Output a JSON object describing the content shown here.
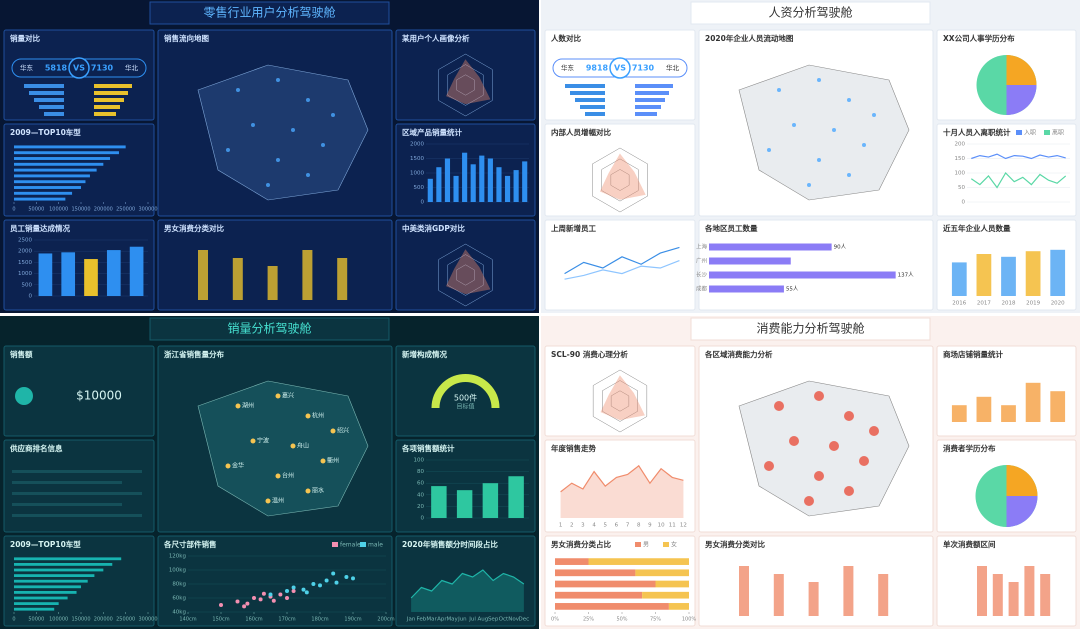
{
  "dashboards": [
    {
      "title": "零售行业用户分析驾驶舱",
      "panels": [
        {
          "title": "销量对比",
          "chart": {
            "type": "kpi",
            "left_label": "华东",
            "left": 5818,
            "vs": "VS",
            "right": 7130,
            "right_label": "华北"
          }
        },
        {
          "title": "销售流向地图",
          "chart": {
            "type": "map"
          }
        },
        {
          "title": "某用户个人画像分析",
          "chart": {
            "type": "radar"
          }
        },
        {
          "title": "2009—TOP10车型",
          "chart": {
            "type": "hbar",
            "categories": [
              null,
              null,
              null,
              null,
              null,
              null,
              null,
              null,
              null,
              null
            ],
            "values": [
              250000,
              235000,
              215000,
              200000,
              185000,
              170000,
              160000,
              150000,
              130000,
              115000
            ],
            "color": "#2e8ff0",
            "xlim": [
              0,
              300000
            ],
            "xticks": [
              0,
              50000,
              100000,
              150000,
              200000,
              250000,
              300000
            ]
          }
        },
        {
          "title": "区域产品销量统计",
          "chart": {
            "type": "bar",
            "categories": [
              null,
              null,
              null,
              null,
              null,
              null,
              null,
              null,
              null,
              null,
              null,
              null
            ],
            "values": [
              800,
              1200,
              1500,
              900,
              1700,
              1300,
              1600,
              1500,
              1200,
              900,
              1100,
              1400
            ],
            "colors": [
              "#2e8ff0",
              "#2e8ff0",
              "#2e8ff0",
              "#2e8ff0",
              "#2e8ff0",
              "#2e8ff0",
              "#2e8ff0",
              "#2e8ff0",
              "#2e8ff0",
              "#2e8ff0",
              "#2e8ff0",
              "#2e8ff0"
            ],
            "ylim": [
              0,
              2000
            ],
            "yticks": [
              0,
              500,
              1000,
              1500,
              2000
            ]
          }
        },
        {
          "title": "员工销量达成情况",
          "chart": {
            "type": "bar",
            "categories": [
              null,
              null,
              null,
              null,
              null
            ],
            "values": [
              1900,
              1950,
              1650,
              2050,
              2200
            ],
            "colors": [
              "#2e8ff0",
              "#2e8ff0",
              "#e8c12c",
              "#2e8ff0",
              "#2e8ff0"
            ],
            "ylim": [
              0,
              2500
            ],
            "yticks": [
              0,
              500,
              1000,
              1500,
              2000,
              2500
            ]
          }
        },
        {
          "title": "男女消费分类对比",
          "chart": {
            "type": "deco"
          }
        },
        {
          "title": "中美类消GDP对比",
          "chart": {
            "type": "radar"
          }
        }
      ]
    },
    {
      "title": "人资分析驾驶舱",
      "panels": [
        {
          "title": "人数对比",
          "chart": {
            "type": "kpi",
            "left_label": "华东",
            "left": 9818,
            "vs": "VS",
            "right": 7130,
            "right_label": "华北"
          }
        },
        {
          "title": "2020年企业人员流动地图",
          "chart": {
            "type": "map"
          }
        },
        {
          "title": "XX公司人事学历分布",
          "chart": {
            "type": "pie"
          }
        },
        {
          "title": "内部人员增幅对比",
          "chart": {
            "type": "radar"
          }
        },
        {
          "title": "十月人员入离职统计",
          "chart": {
            "type": "line",
            "categories": [
              null,
              null,
              null,
              null,
              null,
              null,
              null,
              null,
              null,
              null,
              null,
              null
            ],
            "series": [
              {
                "name": "入职",
                "color": "#5b8ff9",
                "values": [
                  150,
                  160,
                  155,
                  165,
                  150,
                  160,
                  158,
                  150,
                  162,
                  155,
                  160,
                  152
                ]
              },
              {
                "name": "离职",
                "color": "#5ad8a6",
                "values": [
                  80,
                  60,
                  90,
                  50,
                  100,
                  70,
                  85,
                  60,
                  95,
                  75,
                  65,
                  90
                ]
              }
            ],
            "ylim": [
              0,
              200
            ],
            "yticks": [
              0,
              50,
              100,
              150,
              200
            ]
          }
        },
        {
          "title": "上周新增员工",
          "chart": {
            "type": "line",
            "categories": [
              null,
              null,
              null,
              null,
              null,
              null,
              null
            ],
            "series": [
              {
                "color": "#3a8ee6",
                "values": [
                  120,
                  180,
                  150,
                  210,
                  170,
                  230,
                  260
                ]
              },
              {
                "color": "#8ec5ff",
                "values": [
                  90,
                  110,
                  140,
                  120,
                  160,
                  150,
                  190
                ]
              }
            ],
            "ylim": [
              0,
              300
            ]
          }
        },
        {
          "title": "各地区员工数量",
          "chart": {
            "type": "hbar",
            "categories": [
              "上海",
              "广州",
              "长沙",
              "成都"
            ],
            "values": [
              90,
              60,
              137,
              55
            ],
            "value_labels": [
              "90人",
              null,
              "137人",
              "55人"
            ],
            "color": "#8b7cf6",
            "xlim": [
              0,
              160
            ]
          }
        },
        {
          "title": "近五年企业人员数量",
          "chart": {
            "type": "bar",
            "categories": [
              "2016",
              "2017",
              "2018",
              "2019",
              "2020"
            ],
            "values": [
              120,
              150,
              140,
              160,
              165
            ],
            "colors": [
              "#6cb4f5",
              "#f5c451",
              "#6cb4f5",
              "#f5c451",
              "#6cb4f5"
            ],
            "ylim": [
              0,
              200
            ]
          }
        }
      ]
    },
    {
      "title": "销量分析驾驶舱",
      "panels": [
        {
          "title": "销售额",
          "chart": {
            "type": "stat",
            "value": "$10000"
          }
        },
        {
          "title": "浙江省销售量分布",
          "chart": {
            "type": "map",
            "labels": [
              "湖州",
              "嘉兴",
              "杭州",
              "绍兴",
              "宁波",
              "舟山",
              "衢州",
              "金华",
              "台州",
              "丽水",
              "温州"
            ]
          }
        },
        {
          "title": "新增构成情况",
          "chart": {
            "type": "gauge",
            "value": "500件",
            "label": "目标值"
          }
        },
        {
          "title": "供应商排名信息",
          "chart": {
            "type": "list"
          }
        },
        {
          "title": "各项销售额统计",
          "chart": {
            "type": "bar",
            "categories": [
              null,
              null,
              null,
              null
            ],
            "values": [
              55,
              48,
              60,
              72
            ],
            "colors": [
              "#2ec7a0",
              "#2ec7a0",
              "#2ec7a0",
              "#2ec7a0"
            ],
            "ylim": [
              0,
              100
            ],
            "yticks": [
              0,
              20,
              40,
              60,
              80,
              100
            ]
          }
        },
        {
          "title": "2009—TOP10车型",
          "chart": {
            "type": "hbar",
            "categories": [
              null,
              null,
              null,
              null,
              null,
              null,
              null,
              null,
              null,
              null
            ],
            "values": [
              240000,
              220000,
              200000,
              180000,
              165000,
              150000,
              140000,
              120000,
              100000,
              90000
            ],
            "color": "#17b3b0",
            "xlim": [
              0,
              300000
            ],
            "xticks": [
              0,
              50000,
              100000,
              150000,
              200000,
              250000,
              300000
            ]
          }
        },
        {
          "title": "各尺寸部件销售",
          "chart": {
            "type": "scatter",
            "series": [
              {
                "name": "female",
                "color": "#f48fb1",
                "x": [
                  150,
                  155,
                  158,
                  160,
                  162,
                  165,
                  168,
                  170,
                  163,
                  157,
                  172,
                  166
                ],
                "y": [
                  50,
                  55,
                  52,
                  60,
                  58,
                  62,
                  65,
                  60,
                  66,
                  48,
                  70,
                  56
                ]
              },
              {
                "name": "male",
                "color": "#4fd1e8",
                "x": [
                  165,
                  170,
                  172,
                  175,
                  178,
                  180,
                  182,
                  185,
                  188,
                  190,
                  176,
                  184
                ],
                "y": [
                  65,
                  70,
                  75,
                  72,
                  80,
                  78,
                  85,
                  82,
                  90,
                  88,
                  68,
                  95
                ]
              }
            ],
            "xlim": [
              140,
              200
            ],
            "xticks": [
              {
                "value": 140,
                "label": "140cm"
              },
              {
                "value": 150,
                "label": "150cm"
              },
              {
                "value": 160,
                "label": "160cm"
              },
              {
                "value": 170,
                "label": "170cm"
              },
              {
                "value": 180,
                "label": "180cm"
              },
              {
                "value": 190,
                "label": "190cm"
              },
              {
                "value": 200,
                "label": "200cm"
              }
            ],
            "ylim": [
              40,
              120
            ],
            "yticks": [
              {
                "value": 40,
                "label": "40kg"
              },
              {
                "value": 60,
                "label": "60kg"
              },
              {
                "value": 80,
                "label": "80kg"
              },
              {
                "value": 100,
                "label": "100kg"
              },
              {
                "value": 120,
                "label": "120kg"
              }
            ]
          }
        },
        {
          "title": "2020年销售额分时间段占比",
          "chart": {
            "type": "line",
            "area": true,
            "categories": [
              "Jan",
              "Feb",
              "Mar",
              "Apr",
              "May",
              "Jun",
              "Jul",
              "Aug",
              "Sep",
              "Oct",
              "Nov",
              "Dec"
            ],
            "series": [
              {
                "color": "#1fb5a8",
                "values": [
                  20,
                  35,
                  30,
                  45,
                  40,
                  55,
                  50,
                  60,
                  45,
                  55,
                  50,
                  40
                ]
              }
            ],
            "ylim": [
              0,
              80
            ]
          }
        }
      ]
    },
    {
      "title": "消费能力分析驾驶舱",
      "panels": [
        {
          "title": "SCL-90 消费心理分析",
          "chart": {
            "type": "radar"
          }
        },
        {
          "title": "各区域消费能力分析",
          "chart": {
            "type": "map"
          }
        },
        {
          "title": "商场店铺销量统计",
          "chart": {
            "type": "bar",
            "categories": [
              null,
              null,
              null,
              null,
              null
            ],
            "values": [
              30,
              45,
              30,
              70,
              55
            ],
            "colors": [
              "#f7b267",
              "#f7b267",
              "#f7b267",
              "#f7b267",
              "#f7b267"
            ],
            "ylim": [
              0,
              100
            ]
          }
        },
        {
          "title": "年度销售走势",
          "chart": {
            "type": "line",
            "area": true,
            "categories": [
              "1",
              "2",
              "3",
              "4",
              "5",
              "6",
              "7",
              "8",
              "9",
              "10",
              "11",
              "12"
            ],
            "series": [
              {
                "color": "#f08c6c",
                "values": [
                  45,
                  60,
                  50,
                  80,
                  55,
                  70,
                  75,
                  90,
                  60,
                  85,
                  70,
                  65
                ]
              }
            ],
            "ylim": [
              0,
              100
            ]
          }
        },
        {
          "title": "消费者学历分布",
          "chart": {
            "type": "pie"
          }
        },
        {
          "title": "男女消费分类占比",
          "chart": {
            "type": "stackh",
            "categories": [
              null,
              null,
              null,
              null,
              null
            ],
            "series": [
              {
                "name": "男",
                "color": "#f08c6c",
                "values": [
                  25,
                  60,
                  75,
                  65,
                  85
                ]
              },
              {
                "name": "女",
                "color": "#f5c451",
                "values": [
                  75,
                  40,
                  25,
                  35,
                  15
                ]
              }
            ],
            "xlim": [
              0,
              100
            ],
            "xticks": [
              {
                "value": 0,
                "label": "0%"
              },
              {
                "value": 25,
                "label": "25%"
              },
              {
                "value": 50,
                "label": "50%"
              },
              {
                "value": 75,
                "label": "75%"
              },
              {
                "value": 100,
                "label": "100%"
              }
            ]
          }
        },
        {
          "title": "男女消费分类对比",
          "chart": {
            "type": "deco"
          }
        },
        {
          "title": "单次消费额区间",
          "chart": {
            "type": "deco"
          }
        }
      ]
    }
  ]
}
